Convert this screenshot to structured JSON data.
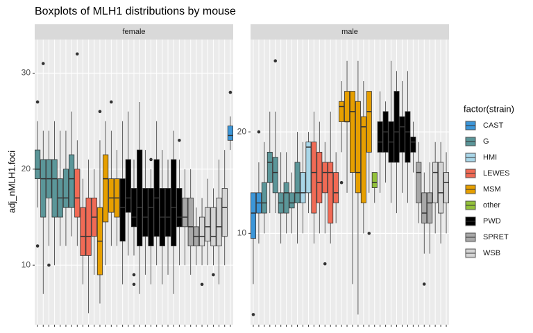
{
  "chart_data": {
    "type": "boxplot",
    "title": "Boxplots of MLH1 distributions by mouse",
    "y_label": "adj_nMLH1.foci",
    "legend_title": "factor(strain)",
    "series": [
      {
        "name": "CAST",
        "color": "#3c96d8"
      },
      {
        "name": "G",
        "color": "#5b9699"
      },
      {
        "name": "HMI",
        "color": "#a9d6e8"
      },
      {
        "name": "LEWES",
        "color": "#f06a55"
      },
      {
        "name": "MSM",
        "color": "#e69f00"
      },
      {
        "name": "other",
        "color": "#93c13b"
      },
      {
        "name": "PWD",
        "color": "#000000"
      },
      {
        "name": "SPRET",
        "color": "#a8a8a8"
      },
      {
        "name": "WSB",
        "color": "#d4d4d4"
      }
    ],
    "facets": [
      {
        "name": "female",
        "ylim": [
          3.8,
          33.5
        ],
        "yticks": [
          10,
          20,
          30
        ],
        "boxes": [
          {
            "strain": "G",
            "lower": 16,
            "q1": 19,
            "median": 20,
            "q3": 22,
            "upper": 25,
            "outliers": [
              12,
              27
            ]
          },
          {
            "strain": "G",
            "lower": 7,
            "q1": 15,
            "median": 19,
            "q3": 21,
            "upper": 24,
            "outliers": [
              31
            ]
          },
          {
            "strain": "G",
            "lower": 12,
            "q1": 17,
            "median": 19,
            "q3": 21,
            "upper": 24,
            "outliers": [
              10
            ]
          },
          {
            "strain": "G",
            "lower": 10,
            "q1": 15,
            "median": 19,
            "q3": 21,
            "upper": 25,
            "outliers": []
          },
          {
            "strain": "G",
            "lower": 12,
            "q1": 15,
            "median": 17,
            "q3": 19,
            "upper": 24,
            "outliers": []
          },
          {
            "strain": "G",
            "lower": 12,
            "q1": 16,
            "median": 17,
            "q3": 20,
            "upper": 24,
            "outliers": []
          },
          {
            "strain": "G",
            "lower": 13,
            "q1": 16,
            "median": 19,
            "q3": 21.5,
            "upper": 26,
            "outliers": []
          },
          {
            "strain": "LEWES",
            "lower": 12,
            "q1": 15,
            "median": 17,
            "q3": 20,
            "upper": 23,
            "outliers": [
              32
            ]
          },
          {
            "strain": "LEWES",
            "lower": 8,
            "q1": 11,
            "median": 13,
            "q3": 16,
            "upper": 19,
            "outliers": []
          },
          {
            "strain": "LEWES",
            "lower": 5,
            "q1": 11,
            "median": 13,
            "q3": 17,
            "upper": 21,
            "outliers": []
          },
          {
            "strain": "LEWES",
            "lower": 9,
            "q1": 13,
            "median": 15,
            "q3": 17,
            "upper": 20,
            "outliers": []
          },
          {
            "strain": "MSM",
            "lower": 6,
            "q1": 9,
            "median": 12.5,
            "q3": 16,
            "upper": 23,
            "outliers": [
              26
            ]
          },
          {
            "strain": "MSM",
            "lower": 10,
            "q1": 14.5,
            "median": 19,
            "q3": 21.5,
            "upper": 25,
            "outliers": []
          },
          {
            "strain": "MSM",
            "lower": 12,
            "q1": 15.5,
            "median": 17,
            "q3": 19,
            "upper": 24,
            "outliers": [
              27
            ]
          },
          {
            "strain": "MSM",
            "lower": 12,
            "q1": 15,
            "median": 17,
            "q3": 19,
            "upper": 22,
            "outliers": []
          },
          {
            "strain": "PWD",
            "lower": 8,
            "q1": 12.5,
            "median": 16,
            "q3": 19,
            "upper": 25,
            "outliers": []
          },
          {
            "strain": "PWD",
            "lower": 11,
            "q1": 15.5,
            "median": 17,
            "q3": 21,
            "upper": 26,
            "outliers": []
          },
          {
            "strain": "PWD",
            "lower": 11,
            "q1": 14,
            "median": 15,
            "q3": 18,
            "upper": 21,
            "outliers": [
              8,
              9
            ]
          },
          {
            "strain": "PWD",
            "lower": 7,
            "q1": 12,
            "median": 16,
            "q3": 22,
            "upper": 27,
            "outliers": []
          },
          {
            "strain": "PWD",
            "lower": 9,
            "q1": 13,
            "median": 15,
            "q3": 18,
            "upper": 22,
            "outliers": []
          },
          {
            "strain": "PWD",
            "lower": 8,
            "q1": 12,
            "median": 16,
            "q3": 18,
            "upper": 20,
            "outliers": [
              21
            ]
          },
          {
            "strain": "PWD",
            "lower": 10,
            "q1": 13,
            "median": 17,
            "q3": 21,
            "upper": 25,
            "outliers": []
          },
          {
            "strain": "PWD",
            "lower": 8,
            "q1": 12,
            "median": 15,
            "q3": 18,
            "upper": 22,
            "outliers": []
          },
          {
            "strain": "PWD",
            "lower": 9,
            "q1": 13,
            "median": 15,
            "q3": 18,
            "upper": 21,
            "outliers": []
          },
          {
            "strain": "PWD",
            "lower": 7,
            "q1": 12,
            "median": 16,
            "q3": 21,
            "upper": 24,
            "outliers": []
          },
          {
            "strain": "PWD",
            "lower": 10,
            "q1": 14,
            "median": 15,
            "q3": 18,
            "upper": 21,
            "outliers": [
              23
            ]
          },
          {
            "strain": "SPRET",
            "lower": 10,
            "q1": 14,
            "median": 15,
            "q3": 17,
            "upper": 20,
            "outliers": []
          },
          {
            "strain": "SPRET",
            "lower": 9,
            "q1": 12,
            "median": 14,
            "q3": 17,
            "upper": 20,
            "outliers": []
          },
          {
            "strain": "SPRET",
            "lower": 10,
            "q1": 12,
            "median": 13,
            "q3": 14,
            "upper": 16,
            "outliers": []
          },
          {
            "strain": "WSB",
            "lower": 10,
            "q1": 12,
            "median": 13,
            "q3": 15,
            "upper": 17,
            "outliers": [
              8
            ]
          },
          {
            "strain": "WSB",
            "lower": 10,
            "q1": 12.5,
            "median": 14,
            "q3": 16,
            "upper": 19,
            "outliers": []
          },
          {
            "strain": "WSB",
            "lower": 10,
            "q1": 12,
            "median": 13,
            "q3": 16,
            "upper": 18,
            "outliers": [
              9
            ]
          },
          {
            "strain": "WSB",
            "lower": 8,
            "q1": 12,
            "median": 14,
            "q3": 17,
            "upper": 21,
            "outliers": []
          },
          {
            "strain": "WSB",
            "lower": 10,
            "q1": 13,
            "median": 16,
            "q3": 18,
            "upper": 22,
            "outliers": []
          },
          {
            "strain": "CAST",
            "lower": 22,
            "q1": 23,
            "median": 23.5,
            "q3": 24.5,
            "upper": 25.5,
            "outliers": [
              28
            ]
          }
        ]
      },
      {
        "name": "male",
        "ylim": [
          1,
          29.1
        ],
        "yticks": [
          10,
          20
        ],
        "boxes": [
          {
            "strain": "CAST",
            "lower": 5,
            "q1": 9.5,
            "median": 12,
            "q3": 14,
            "upper": 14,
            "outliers": [
              2
            ]
          },
          {
            "strain": "CAST",
            "lower": 9,
            "q1": 12,
            "median": 13,
            "q3": 14,
            "upper": 17,
            "outliers": [
              20
            ]
          },
          {
            "strain": "G",
            "lower": 10,
            "q1": 12,
            "median": 13,
            "q3": 15,
            "upper": 19,
            "outliers": []
          },
          {
            "strain": "G",
            "lower": 12,
            "q1": 15,
            "median": 17,
            "q3": 18,
            "upper": 22,
            "outliers": []
          },
          {
            "strain": "G",
            "lower": 12,
            "q1": 14,
            "median": 16,
            "q3": 17.5,
            "upper": 22,
            "outliers": [
              27
            ]
          },
          {
            "strain": "G",
            "lower": 9,
            "q1": 12,
            "median": 13,
            "q3": 14,
            "upper": 18,
            "outliers": []
          },
          {
            "strain": "G",
            "lower": 10,
            "q1": 12,
            "median": 14,
            "q3": 15,
            "upper": 18,
            "outliers": []
          },
          {
            "strain": "G",
            "lower": 10,
            "q1": 12.5,
            "median": 13,
            "q3": 14,
            "upper": 16,
            "outliers": []
          },
          {
            "strain": "G",
            "lower": 9,
            "q1": 13,
            "median": 14,
            "q3": 17,
            "upper": 20,
            "outliers": []
          },
          {
            "strain": "HMI",
            "lower": 10,
            "q1": 13,
            "median": 14,
            "q3": 16,
            "upper": 19,
            "outliers": []
          },
          {
            "strain": "HMI",
            "lower": 12,
            "q1": 14,
            "median": 18.5,
            "q3": 19,
            "upper": 20,
            "outliers": []
          },
          {
            "strain": "LEWES",
            "lower": 9,
            "q1": 12,
            "median": 16,
            "q3": 19,
            "upper": 22,
            "outliers": []
          },
          {
            "strain": "LEWES",
            "lower": 10,
            "q1": 13,
            "median": 15,
            "q3": 18,
            "upper": 21,
            "outliers": []
          },
          {
            "strain": "LEWES",
            "lower": 10,
            "q1": 14,
            "median": 16,
            "q3": 17,
            "upper": 19,
            "outliers": [
              7
            ]
          },
          {
            "strain": "LEWES",
            "lower": 9,
            "q1": 11,
            "median": 16,
            "q3": 17,
            "upper": 22,
            "outliers": []
          },
          {
            "strain": "LEWES",
            "lower": 11,
            "q1": 13,
            "median": 14,
            "q3": 16,
            "upper": 18,
            "outliers": []
          },
          {
            "strain": "MSM",
            "lower": 18,
            "q1": 21,
            "median": 22.5,
            "q3": 23,
            "upper": 25,
            "outliers": [
              15
            ]
          },
          {
            "strain": "MSM",
            "lower": 14,
            "q1": 21,
            "median": 21,
            "q3": 24,
            "upper": 27,
            "outliers": []
          },
          {
            "strain": "MSM",
            "lower": 5,
            "q1": 16,
            "median": 22,
            "q3": 24,
            "upper": 24,
            "outliers": []
          },
          {
            "strain": "MSM",
            "lower": 2,
            "q1": 14,
            "median": 16,
            "q3": 23,
            "upper": 27,
            "outliers": []
          },
          {
            "strain": "MSM",
            "lower": 10,
            "q1": 13,
            "median": 20.5,
            "q3": 21.5,
            "upper": 25,
            "outliers": []
          },
          {
            "strain": "MSM",
            "lower": 14,
            "q1": 18,
            "median": 22,
            "q3": 24,
            "upper": 24,
            "outliers": [
              10
            ]
          },
          {
            "strain": "other",
            "lower": 13,
            "q1": 14.5,
            "median": 15,
            "q3": 16,
            "upper": 16,
            "outliers": []
          },
          {
            "strain": "PWD",
            "lower": 14,
            "q1": 18,
            "median": 19,
            "q3": 21,
            "upper": 24,
            "outliers": []
          },
          {
            "strain": "PWD",
            "lower": 15,
            "q1": 18,
            "median": 20,
            "q3": 22,
            "upper": 23,
            "outliers": []
          },
          {
            "strain": "PWD",
            "lower": 13,
            "q1": 17,
            "median": 19,
            "q3": 21,
            "upper": 27,
            "outliers": []
          },
          {
            "strain": "PWD",
            "lower": 12,
            "q1": 17,
            "median": 20,
            "q3": 24,
            "upper": 26,
            "outliers": []
          },
          {
            "strain": "PWD",
            "lower": 14,
            "q1": 18,
            "median": 20.5,
            "q3": 21.5,
            "upper": 25,
            "outliers": []
          },
          {
            "strain": "PWD",
            "lower": 13,
            "q1": 17,
            "median": 20,
            "q3": 22,
            "upper": 26,
            "outliers": []
          },
          {
            "strain": "PWD",
            "lower": 16,
            "q1": 18,
            "median": 19,
            "q3": 19.5,
            "upper": 21,
            "outliers": []
          },
          {
            "strain": "SPRET",
            "lower": 11,
            "q1": 13,
            "median": 16,
            "q3": 17,
            "upper": 19,
            "outliers": []
          },
          {
            "strain": "SPRET",
            "lower": 8,
            "q1": 11,
            "median": 12,
            "q3": 14,
            "upper": 16,
            "outliers": [
              5
            ]
          },
          {
            "strain": "SPRET",
            "lower": 8,
            "q1": 11,
            "median": 13,
            "q3": 14,
            "upper": 17,
            "outliers": []
          },
          {
            "strain": "WSB",
            "lower": 10,
            "q1": 13,
            "median": 16,
            "q3": 17,
            "upper": 19,
            "outliers": []
          },
          {
            "strain": "WSB",
            "lower": 9,
            "q1": 12,
            "median": 14,
            "q3": 17,
            "upper": 19,
            "outliers": []
          },
          {
            "strain": "WSB",
            "lower": 10,
            "q1": 13,
            "median": 15,
            "q3": 16,
            "upper": 18,
            "outliers": []
          }
        ]
      }
    ]
  }
}
